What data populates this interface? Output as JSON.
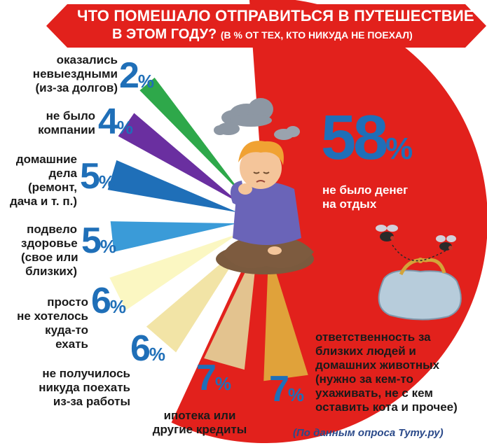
{
  "chart_data": {
    "type": "pie",
    "title": "ЧТО ПОМЕШАЛО ОТПРАВИТЬСЯ В ПУТЕШЕСТВИЕ",
    "title_line2": "В ЭТОМ ГОДУ?",
    "subtitle": "(В % ОТ ТЕХ, КТО НИКУДА НЕ ПОЕХАЛ)",
    "unit": "%",
    "source": "(По данным опроса Туту.ру)",
    "slices": [
      {
        "label_lines": [
          "не было денег",
          "на отдых"
        ],
        "value": 58,
        "value_text": "58",
        "color": "#e2211c"
      },
      {
        "label_lines": [
          "оказались",
          "невыездными",
          "(из-за долгов)"
        ],
        "value": 2,
        "value_text": "2",
        "color": "#2ea84a"
      },
      {
        "label_lines": [
          "не было",
          "компании"
        ],
        "value": 4,
        "value_text": "4",
        "color": "#6a2fa0"
      },
      {
        "label_lines": [
          "домашние",
          "дела",
          "(ремонт,",
          "дача и т. п.)"
        ],
        "value": 5,
        "value_text": "5",
        "color": "#1f6fb8"
      },
      {
        "label_lines": [
          "подвело",
          "здоровье",
          "(свое или",
          "близких)"
        ],
        "value": 5,
        "value_text": "5",
        "color": "#3a9bd8"
      },
      {
        "label_lines": [
          "просто",
          "не хотелось",
          "куда-то",
          "ехать"
        ],
        "value": 6,
        "value_text": "6",
        "color": "#fbf7c2"
      },
      {
        "label_lines": [
          "не получилось",
          "никуда поехать",
          "из-за работы"
        ],
        "value": 6,
        "value_text": "6",
        "color": "#f2e4a6"
      },
      {
        "label_lines": [
          "ипотека или",
          "другие кредиты"
        ],
        "value": 7,
        "value_text": "7",
        "color": "#e3c38f"
      },
      {
        "label_lines": [
          "ответственность за",
          "близких людей и",
          "домашних животных",
          "(нужно за кем-то",
          "ухаживать, не с кем",
          "оставить кота и прочее)"
        ],
        "value": 7,
        "value_text": "7",
        "color": "#e0a23a"
      }
    ]
  },
  "colors": {
    "banner": "#e2211c",
    "percent_text": "#1f6fb8"
  }
}
